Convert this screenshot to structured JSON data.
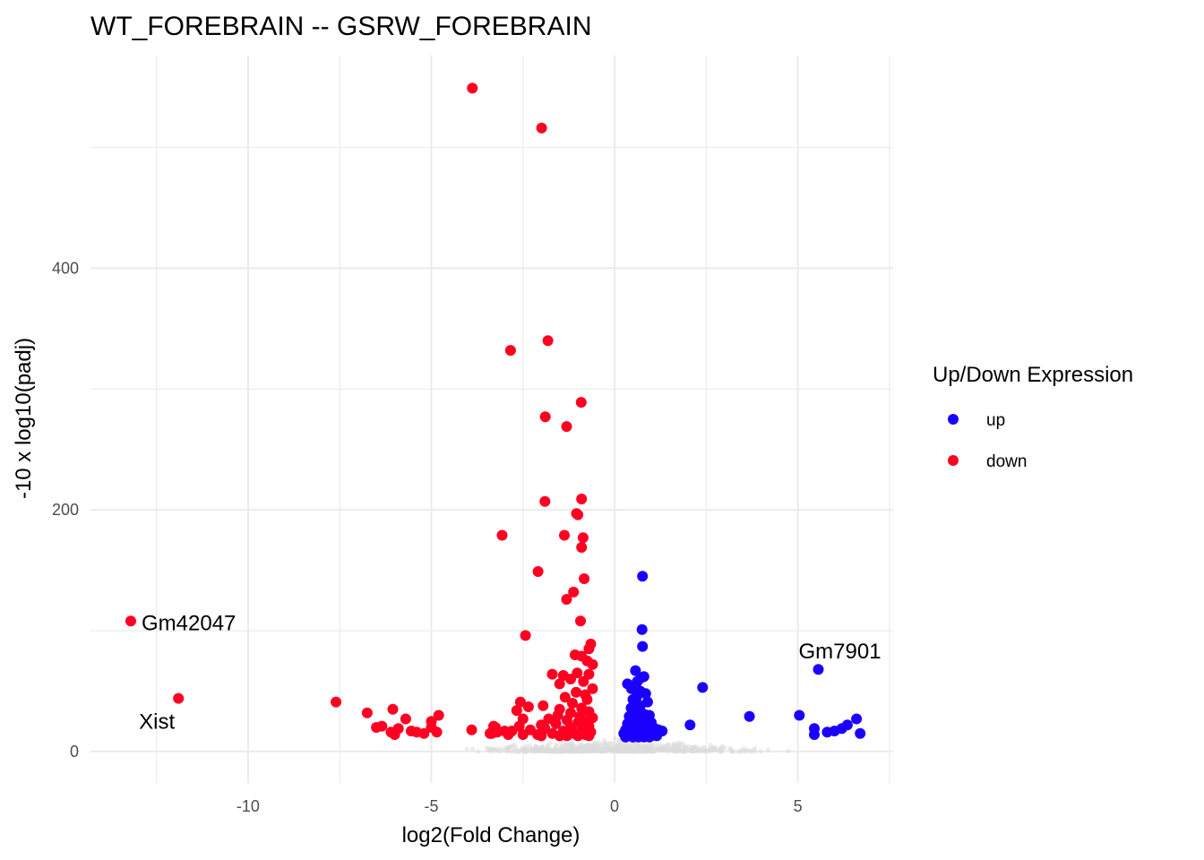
{
  "chart_data": {
    "type": "scatter",
    "title": "WT_FOREBRAIN -- GSRW_FOREBRAIN",
    "xlabel": "log2(Fold Change)",
    "ylabel": "-10 x log10(padj)",
    "xlim": [
      -14.3,
      7.6
    ],
    "ylim": [
      -26,
      576
    ],
    "x_ticks": [
      -10,
      -5,
      0,
      5
    ],
    "x_tick_labels": [
      "-10",
      "-5",
      "0",
      "5"
    ],
    "y_ticks": [
      0,
      200,
      400
    ],
    "y_tick_labels": [
      "0",
      "200",
      "400"
    ],
    "grid": true,
    "legend": {
      "title": "Up/Down Expression",
      "position": "right",
      "entries": [
        {
          "label": "up",
          "color": "#1a00ff"
        },
        {
          "label": "down",
          "color": "#ff0022"
        }
      ]
    },
    "series": [
      {
        "name": "up",
        "color": "#1a00ff",
        "points": [
          [
            0.76,
            145
          ],
          [
            0.75,
            101
          ],
          [
            0.76,
            87
          ],
          [
            0.57,
            67
          ],
          [
            0.72,
            61
          ],
          [
            0.8,
            62
          ],
          [
            0.62,
            58
          ],
          [
            0.35,
            56
          ],
          [
            0.46,
            52
          ],
          [
            0.7,
            50
          ],
          [
            0.85,
            48
          ],
          [
            0.6,
            45
          ],
          [
            0.5,
            43
          ],
          [
            0.9,
            41
          ],
          [
            0.7,
            38
          ],
          [
            0.45,
            36
          ],
          [
            0.6,
            33
          ],
          [
            0.8,
            31
          ],
          [
            0.95,
            30
          ],
          [
            0.4,
            29
          ],
          [
            0.55,
            27
          ],
          [
            0.7,
            26
          ],
          [
            0.85,
            25
          ],
          [
            1.0,
            24
          ],
          [
            0.35,
            23
          ],
          [
            0.5,
            22
          ],
          [
            0.65,
            21
          ],
          [
            0.8,
            20
          ],
          [
            1.1,
            19
          ],
          [
            0.3,
            18
          ],
          [
            0.45,
            17
          ],
          [
            0.6,
            17
          ],
          [
            0.75,
            16
          ],
          [
            0.9,
            16
          ],
          [
            1.2,
            18
          ],
          [
            1.3,
            17
          ],
          [
            0.25,
            15
          ],
          [
            0.4,
            14
          ],
          [
            0.55,
            14
          ],
          [
            0.7,
            13
          ],
          [
            0.85,
            13
          ],
          [
            1.0,
            13
          ],
          [
            0.3,
            12
          ],
          [
            0.5,
            12
          ],
          [
            0.65,
            12
          ],
          [
            0.8,
            12
          ],
          [
            0.95,
            12
          ],
          [
            1.15,
            13
          ],
          [
            2.4,
            53
          ],
          [
            2.06,
            22
          ],
          [
            3.68,
            29
          ],
          [
            5.04,
            30
          ],
          [
            5.56,
            68
          ],
          [
            5.45,
            19
          ],
          [
            5.45,
            14
          ],
          [
            5.8,
            16
          ],
          [
            6.0,
            17
          ],
          [
            6.2,
            19
          ],
          [
            6.35,
            22
          ],
          [
            6.6,
            27
          ],
          [
            6.7,
            15
          ]
        ]
      },
      {
        "name": "down",
        "color": "#ff0022",
        "points": [
          [
            -3.88,
            549
          ],
          [
            -1.99,
            516
          ],
          [
            -2.84,
            332
          ],
          [
            -1.82,
            340
          ],
          [
            -0.91,
            289
          ],
          [
            -1.89,
            277
          ],
          [
            -1.31,
            269
          ],
          [
            -1.9,
            207
          ],
          [
            -0.9,
            209
          ],
          [
            -1.04,
            197
          ],
          [
            -1.0,
            196
          ],
          [
            -3.07,
            179
          ],
          [
            -1.37,
            179
          ],
          [
            -0.86,
            177
          ],
          [
            -0.9,
            169
          ],
          [
            -2.09,
            149
          ],
          [
            -0.83,
            143
          ],
          [
            -1.12,
            132
          ],
          [
            -1.31,
            126
          ],
          [
            -0.93,
            108
          ],
          [
            -2.43,
            96
          ],
          [
            -0.65,
            89
          ],
          [
            -0.7,
            85
          ],
          [
            -1.08,
            80
          ],
          [
            -0.9,
            79
          ],
          [
            -0.75,
            75
          ],
          [
            -0.6,
            72
          ],
          [
            -1.02,
            65
          ],
          [
            -0.7,
            64
          ],
          [
            -1.7,
            64
          ],
          [
            -1.4,
            63
          ],
          [
            -1.2,
            60
          ],
          [
            -0.85,
            58
          ],
          [
            -1.5,
            56
          ],
          [
            -0.6,
            52
          ],
          [
            -1.05,
            49
          ],
          [
            -0.8,
            47
          ],
          [
            -1.35,
            45
          ],
          [
            -0.75,
            43
          ],
          [
            -2.57,
            41
          ],
          [
            -1.15,
            40
          ],
          [
            -1.95,
            38
          ],
          [
            -2.35,
            37
          ],
          [
            -0.9,
            36
          ],
          [
            -1.5,
            35
          ],
          [
            -2.67,
            34
          ],
          [
            -0.7,
            33
          ],
          [
            -1.2,
            32
          ],
          [
            -1.55,
            30
          ],
          [
            -0.95,
            29
          ],
          [
            -0.6,
            28
          ],
          [
            -1.8,
            27
          ],
          [
            -2.5,
            27
          ],
          [
            -1.3,
            26
          ],
          [
            -0.8,
            25
          ],
          [
            -1.0,
            24
          ],
          [
            -1.6,
            23
          ],
          [
            -2.0,
            22
          ],
          [
            -2.6,
            21
          ],
          [
            -0.7,
            21
          ],
          [
            -3.3,
            21
          ],
          [
            -1.2,
            20
          ],
          [
            -1.9,
            19
          ],
          [
            -2.3,
            18
          ],
          [
            -0.9,
            18
          ],
          [
            -1.4,
            17
          ],
          [
            -2.8,
            17
          ],
          [
            -3.2,
            16
          ],
          [
            -0.65,
            16
          ],
          [
            -1.1,
            15
          ],
          [
            -1.7,
            15
          ],
          [
            -2.1,
            14
          ],
          [
            -2.5,
            14
          ],
          [
            -3.4,
            15
          ],
          [
            -2.9,
            14
          ],
          [
            -0.8,
            14
          ],
          [
            -1.5,
            13
          ],
          [
            -2.0,
            13
          ],
          [
            -1.3,
            13
          ],
          [
            -1.0,
            13
          ],
          [
            -0.7,
            13
          ],
          [
            -13.2,
            108
          ],
          [
            -11.9,
            44
          ],
          [
            -7.6,
            41
          ],
          [
            -6.75,
            32
          ],
          [
            -6.5,
            20
          ],
          [
            -6.35,
            21
          ],
          [
            -6.1,
            16
          ],
          [
            -6.05,
            35
          ],
          [
            -6.0,
            14
          ],
          [
            -5.9,
            19
          ],
          [
            -5.7,
            27
          ],
          [
            -5.55,
            17
          ],
          [
            -5.4,
            16
          ],
          [
            -5.2,
            15
          ],
          [
            -5.0,
            25
          ],
          [
            -5.0,
            20
          ],
          [
            -4.85,
            16
          ],
          [
            -4.8,
            30
          ],
          [
            -3.9,
            18
          ],
          [
            -3.35,
            15
          ],
          [
            -3.25,
            20
          ],
          [
            -3.0,
            17
          ]
        ]
      }
    ],
    "annotations": [
      {
        "text": "Gm42047",
        "x": -13.2,
        "y": 108
      },
      {
        "text": "Xist",
        "x": -11.9,
        "y": 44
      },
      {
        "text": "Gm7901",
        "x": 5.56,
        "y": 68
      }
    ]
  }
}
